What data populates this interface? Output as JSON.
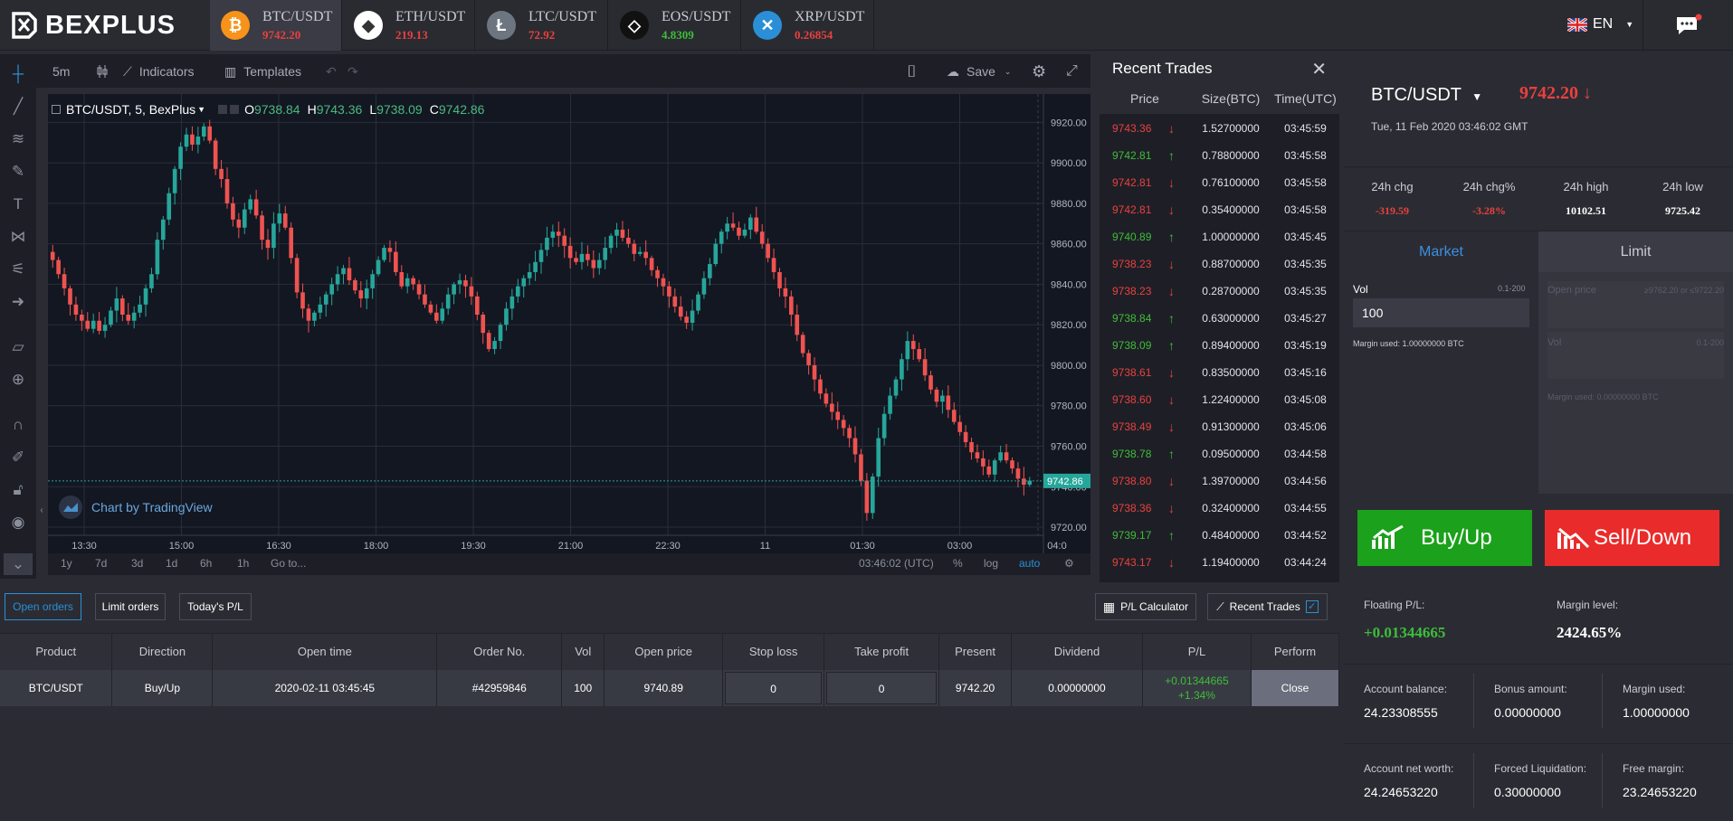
{
  "brand": "BEXPLUS",
  "tickers": [
    {
      "symbol": "BTC/USDT",
      "price": "9742.20",
      "dir": "red",
      "coin": "₿",
      "color": "#f7931a"
    },
    {
      "symbol": "ETH/USDT",
      "price": "219.13",
      "dir": "red",
      "coin": "◆",
      "color": "#ffffff"
    },
    {
      "symbol": "LTC/USDT",
      "price": "72.92",
      "dir": "red",
      "coin": "Ł",
      "color": "#6d7580"
    },
    {
      "symbol": "EOS/USDT",
      "price": "4.8309",
      "dir": "green",
      "coin": "◇",
      "color": "#111111"
    },
    {
      "symbol": "XRP/USDT",
      "price": "0.26854",
      "dir": "red",
      "coin": "✕",
      "color": "#2a8fd6"
    }
  ],
  "language": "EN",
  "chart_toolbar": {
    "interval": "5m",
    "indicators": "Indicators",
    "templates": "Templates",
    "save": "Save"
  },
  "chart_legend": {
    "title": "BTC/USDT, 5, BexPlus",
    "o_label": "O",
    "o": "9738.84",
    "h_label": "H",
    "h": "9743.36",
    "l_label": "L",
    "l": "9738.09",
    "c_label": "C",
    "c": "9742.86"
  },
  "chart_watermark": "Chart by TradingView",
  "chart_bottom": {
    "periods": [
      "1y",
      "7d",
      "3d",
      "1d",
      "6h",
      "1h",
      "Go to..."
    ],
    "time": "03:46:02 (UTC)",
    "pct": "%",
    "log": "log",
    "auto": "auto"
  },
  "chart_data": {
    "type": "candlestick",
    "x_ticks": [
      "13:30",
      "15:00",
      "16:30",
      "18:00",
      "19:30",
      "21:00",
      "22:30",
      "11",
      "01:30",
      "03:00",
      "04:0"
    ],
    "y_ticks": [
      "9920.00",
      "9900.00",
      "9880.00",
      "9860.00",
      "9840.00",
      "9820.00",
      "9800.00",
      "9780.00",
      "9760.00",
      "9740.00",
      "9720.00"
    ],
    "ylim": [
      9716,
      9934
    ],
    "last_price": "9742.86",
    "close_series": [
      9852,
      9845,
      9838,
      9830,
      9825,
      9822,
      9818,
      9822,
      9817,
      9820,
      9827,
      9833,
      9825,
      9822,
      9826,
      9830,
      9838,
      9845,
      9862,
      9872,
      9885,
      9897,
      9908,
      9914,
      9909,
      9913,
      9918,
      9911,
      9897,
      9892,
      9880,
      9872,
      9868,
      9877,
      9882,
      9874,
      9862,
      9858,
      9870,
      9875,
      9868,
      9853,
      9836,
      9828,
      9822,
      9826,
      9830,
      9835,
      9840,
      9845,
      9848,
      9842,
      9837,
      9833,
      9838,
      9845,
      9852,
      9858,
      9856,
      9846,
      9839,
      9843,
      9840,
      9835,
      9830,
      9826,
      9822,
      9828,
      9835,
      9840,
      9842,
      9839,
      9834,
      9825,
      9816,
      9808,
      9812,
      9820,
      9828,
      9834,
      9839,
      9843,
      9846,
      9851,
      9857,
      9863,
      9866,
      9864,
      9859,
      9853,
      9851,
      9855,
      9852,
      9848,
      9852,
      9858,
      9864,
      9867,
      9863,
      9860,
      9855,
      9856,
      9853,
      9847,
      9843,
      9839,
      9834,
      9829,
      9824,
      9821,
      9827,
      9835,
      9843,
      9850,
      9860,
      9866,
      9870,
      9868,
      9864,
      9867,
      9873,
      9866,
      9860,
      9853,
      9846,
      9838,
      9834,
      9825,
      9815,
      9806,
      9800,
      9793,
      9786,
      9781,
      9777,
      9773,
      9769,
      9764,
      9756,
      9743,
      9727,
      9745,
      9764,
      9776,
      9785,
      9793,
      9803,
      9812,
      9808,
      9803,
      9795,
      9788,
      9782,
      9785,
      9778,
      9772,
      9767,
      9762,
      9757,
      9754,
      9750,
      9746,
      9753,
      9757,
      9753,
      9749,
      9744,
      9741,
      9743
    ]
  },
  "recent_trades": {
    "title": "Recent Trades",
    "columns": [
      "Price",
      "Size(BTC)",
      "Time(UTC)"
    ],
    "rows": [
      {
        "price": "9743.36",
        "dir": "down",
        "size": "1.52700000",
        "time": "03:45:59"
      },
      {
        "price": "9742.81",
        "dir": "up",
        "size": "0.78800000",
        "time": "03:45:58"
      },
      {
        "price": "9742.81",
        "dir": "down",
        "size": "0.76100000",
        "time": "03:45:58"
      },
      {
        "price": "9742.81",
        "dir": "down",
        "size": "0.35400000",
        "time": "03:45:58"
      },
      {
        "price": "9740.89",
        "dir": "up",
        "size": "1.00000000",
        "time": "03:45:45"
      },
      {
        "price": "9738.23",
        "dir": "down",
        "size": "0.88700000",
        "time": "03:45:35"
      },
      {
        "price": "9738.23",
        "dir": "down",
        "size": "0.28700000",
        "time": "03:45:35"
      },
      {
        "price": "9738.84",
        "dir": "up",
        "size": "0.63000000",
        "time": "03:45:27"
      },
      {
        "price": "9738.09",
        "dir": "up",
        "size": "0.89400000",
        "time": "03:45:19"
      },
      {
        "price": "9738.61",
        "dir": "down",
        "size": "0.83500000",
        "time": "03:45:16"
      },
      {
        "price": "9738.60",
        "dir": "down",
        "size": "1.22400000",
        "time": "03:45:08"
      },
      {
        "price": "9738.49",
        "dir": "down",
        "size": "0.91300000",
        "time": "03:45:06"
      },
      {
        "price": "9738.78",
        "dir": "up",
        "size": "0.09500000",
        "time": "03:44:58"
      },
      {
        "price": "9738.80",
        "dir": "down",
        "size": "1.39700000",
        "time": "03:44:56"
      },
      {
        "price": "9738.36",
        "dir": "down",
        "size": "0.32400000",
        "time": "03:44:55"
      },
      {
        "price": "9739.17",
        "dir": "up",
        "size": "0.48400000",
        "time": "03:44:52"
      },
      {
        "price": "9743.17",
        "dir": "down",
        "size": "1.19400000",
        "time": "03:44:24"
      }
    ]
  },
  "market": {
    "pair": "BTC/USDT",
    "price": "9742.20",
    "datetime": "Tue, 11 Feb 2020 03:46:02 GMT",
    "stats": [
      {
        "label": "24h chg",
        "value": "-319.59",
        "color": "red"
      },
      {
        "label": "24h chg%",
        "value": "-3.28%",
        "color": "red"
      },
      {
        "label": "24h high",
        "value": "10102.51",
        "color": "white"
      },
      {
        "label": "24h low",
        "value": "9725.42",
        "color": "white"
      }
    ]
  },
  "order_form": {
    "tab_market": "Market",
    "tab_limit": "Limit",
    "vol_label": "Vol",
    "vol_range": "0.1-200",
    "vol_value": "100",
    "margin_used": "Margin used: 1.00000000 BTC",
    "limit_open_price": "Open price",
    "limit_open_hint": "≥9762.20 or ≤9722.20",
    "limit_vol": "Vol",
    "limit_vol_range": "0.1-200",
    "limit_margin": "Margin used: 0.00000000 BTC",
    "buy": "Buy/Up",
    "sell": "Sell/Down"
  },
  "orders": {
    "tabs": [
      "Open orders",
      "Limit orders",
      "Today's P/L"
    ],
    "pl_calc": "P/L Calculator",
    "recent_trades_toggle": "Recent Trades",
    "columns": [
      "Product",
      "Direction",
      "Open time",
      "Order No.",
      "Vol",
      "Open price",
      "Stop loss",
      "Take profit",
      "Present",
      "Dividend",
      "P/L",
      "Perform"
    ],
    "row": {
      "product": "BTC/USDT",
      "direction": "Buy/Up",
      "open_time": "2020-02-11 03:45:45",
      "order_no": "#42959846",
      "vol": "100",
      "open_price": "9740.89",
      "stop_loss": "0",
      "take_profit": "0",
      "present": "9742.20",
      "dividend": "0.00000000",
      "pl": "+0.01344665",
      "pl_pct": "+1.34%",
      "perform": "Close"
    }
  },
  "account": {
    "floating_label": "Floating P/L:",
    "floating_value": "+0.01344665",
    "margin_level_label": "Margin level:",
    "margin_level_value": "2424.65%",
    "balance_label": "Account balance:",
    "balance_value": "24.23308555",
    "bonus_label": "Bonus amount:",
    "bonus_value": "0.00000000",
    "margin_used_label": "Margin used:",
    "margin_used_value": "1.00000000",
    "net_worth_label": "Account net worth:",
    "net_worth_value": "24.24653220",
    "forced_label": "Forced Liquidation:",
    "forced_value": "0.30000000",
    "free_margin_label": "Free margin:",
    "free_margin_value": "23.24653220"
  }
}
